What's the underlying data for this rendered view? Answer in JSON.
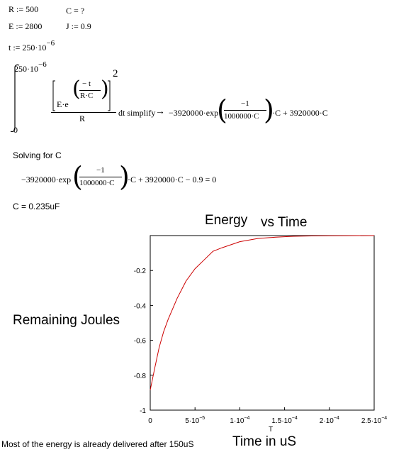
{
  "definitions": {
    "r": "R := 500",
    "c": "C = ?",
    "e": "E := 2800",
    "j": "J := 0.9",
    "t_base": "t := 250·10",
    "t_exp": "−6"
  },
  "integral": {
    "upper_base": "250·10",
    "upper_exp": "−6",
    "lower": "0",
    "num_e": "E·e",
    "inner_num": "− t",
    "inner_den": "R·C",
    "power": "2",
    "den": "R",
    "tail": "dt simplify",
    "arrow": "→",
    "res_lhs": "−3920000·exp",
    "res_num": "−1",
    "res_den": "1000000·C",
    "res_rhs": "·C + 3920000·C"
  },
  "solving": {
    "label": "Solving for C",
    "lhs": "−3920000·exp",
    "num": "−1",
    "den": "1000000·C",
    "rhs": "·C + 3920000·C − 0.9  = 0"
  },
  "result": "C = 0.235uF",
  "chart_data": {
    "type": "line",
    "title_part1": "Energy",
    "title_part2": "vs Time",
    "ylabel": "Remaining Joules",
    "xlabel": "Time in uS",
    "x_var_label": "T",
    "xlim": [
      0,
      0.00025
    ],
    "ylim": [
      -1,
      0
    ],
    "x_ticks": [
      {
        "value": 0,
        "base": "0",
        "exp": ""
      },
      {
        "value": 5e-05,
        "base": "5·10",
        "exp": "−5"
      },
      {
        "value": 0.0001,
        "base": "1·10",
        "exp": "−4"
      },
      {
        "value": 0.00015,
        "base": "1.5·10",
        "exp": "−4"
      },
      {
        "value": 0.0002,
        "base": "2·10",
        "exp": "−4"
      },
      {
        "value": 0.00025,
        "base": "2.5·10",
        "exp": "−4"
      }
    ],
    "y_ticks": [
      {
        "value": -0.2,
        "label": "-0.2"
      },
      {
        "value": -0.4,
        "label": "-0.4"
      },
      {
        "value": -0.6,
        "label": "-0.6"
      },
      {
        "value": -0.8,
        "label": "-0.8"
      },
      {
        "value": -1,
        "label": "-1"
      }
    ],
    "series": [
      {
        "color": "#cc0000",
        "x": [
          0,
          5e-06,
          1e-05,
          1.5e-05,
          2e-05,
          3e-05,
          4e-05,
          5e-05,
          6e-05,
          7e-05,
          8e-05,
          0.0001,
          0.00012,
          0.00014,
          0.00016,
          0.00018,
          0.0002,
          0.00022,
          0.00025
        ],
        "y": [
          -0.885,
          -0.76,
          -0.64,
          -0.55,
          -0.48,
          -0.36,
          -0.26,
          -0.19,
          -0.14,
          -0.09,
          -0.07,
          -0.035,
          -0.017,
          -0.009,
          -0.004,
          -0.002,
          -0.001,
          -0.0005,
          0
        ]
      }
    ]
  },
  "footer_note": "Most of the energy is already delivered after 150uS"
}
